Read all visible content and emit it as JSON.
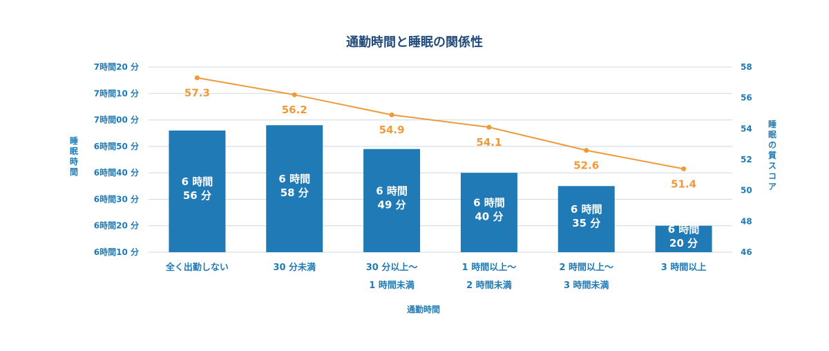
{
  "chart_data": {
    "type": "bar",
    "title": "通勤時間と睡眠の関係性",
    "xlabel": "通勤時間",
    "ylabel": "睡眠時間",
    "y2label": "睡眠の質スコア",
    "categories": [
      [
        "全く出勤しない"
      ],
      [
        "30 分未満"
      ],
      [
        "30 分以上～",
        "1 時間未満"
      ],
      [
        "1 時間以上～",
        "2 時間未満"
      ],
      [
        "2 時間以上～",
        "3 時間未満"
      ],
      [
        "3 時間以上"
      ]
    ],
    "series": [
      {
        "type": "bar",
        "unit": "minutes",
        "values": [
          416,
          418,
          409,
          400,
          395,
          380
        ],
        "labels": [
          [
            "6 時間",
            "56 分"
          ],
          [
            "6 時間",
            "58 分"
          ],
          [
            "6 時間",
            "49 分"
          ],
          [
            "6 時間",
            "40 分"
          ],
          [
            "6 時間",
            "35 分"
          ],
          [
            "6 時間",
            "20 分"
          ]
        ]
      },
      {
        "type": "line",
        "axis": "right",
        "values": [
          57.3,
          56.2,
          54.9,
          54.1,
          52.6,
          51.4
        ],
        "labels": [
          "57.3",
          "56.2",
          "54.9",
          "54.1",
          "52.6",
          "51.4"
        ]
      }
    ],
    "ylim": [
      370,
      440
    ],
    "yticks": [
      370,
      380,
      390,
      400,
      410,
      420,
      430,
      440
    ],
    "ytick_labels": [
      "6時間10 分",
      "6時間20 分",
      "6時間30 分",
      "6時間40 分",
      "6時間50 分",
      "7時間00 分",
      "7時間10 分",
      "7時間20 分"
    ],
    "y2lim": [
      46,
      58
    ],
    "y2ticks": [
      46,
      48,
      50,
      52,
      54,
      56,
      58
    ],
    "y2tick_labels": [
      "46",
      "48",
      "50",
      "52",
      "54",
      "56",
      "58"
    ],
    "grid": true,
    "colors": {
      "bar": "#1f7ab5",
      "line": "#ef9a3a",
      "grid": "#cfd8e0",
      "axis_text": "#1f7ab5",
      "title": "#1f4a7a"
    }
  }
}
